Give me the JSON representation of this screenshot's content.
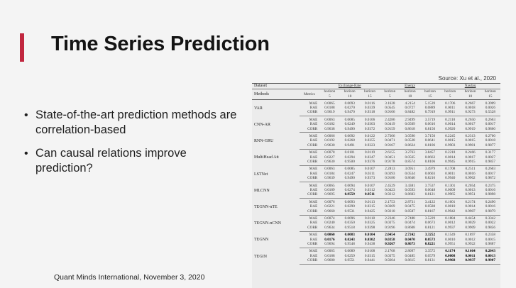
{
  "slide": {
    "title": "Time Series Prediction",
    "source": "Source: Xu et al., 2020",
    "bullets": [
      "State-of-the-art prediction methods are correlation-based",
      "Can causal relations improve prediction?"
    ],
    "footer": "Quant Minds International, November 3, 2020",
    "accent_color": "#c1273f"
  },
  "table": {
    "col_dataset": "Dataset",
    "col_methods": "Methods",
    "col_metrics": "Metrics",
    "datasets": [
      "Exchange-Rate",
      "Energy",
      "Nasdaq"
    ],
    "horizon_label": "horizon",
    "horizons": [
      "5",
      "10",
      "15"
    ],
    "rows": [
      {
        "method": "VAR",
        "metrics": [
          {
            "name": "MAE",
            "values": [
              "0.0065",
              "0.0093",
              "0.0116",
              "3.1628",
              "4.2154",
              "5.1539",
              "0.1706",
              "0.2667",
              "0.3909"
            ]
          },
          {
            "name": "RAE",
            "values": [
              "0.0188",
              "0.0270",
              "0.0339",
              "0.0545",
              "0.0727",
              "0.0889",
              "0.0011",
              "0.0018",
              "0.0026"
            ]
          },
          {
            "name": "CORR",
            "values": [
              "0.9619",
              "0.9470",
              "0.9318",
              "0.9106",
              "0.8482",
              "0.7919",
              "0.9911",
              "0.9273",
              "0.5528"
            ]
          }
        ]
      },
      {
        "method": "CNN-AR",
        "metrics": [
          {
            "name": "MAE",
            "values": [
              "0.0063",
              "0.0085",
              "0.0106",
              "2.4286",
              "2.9499",
              "3.5719",
              "0.2110",
              "0.2650",
              "0.2663"
            ]
          },
          {
            "name": "RAE",
            "values": [
              "0.0182",
              "0.0249",
              "0.0303",
              "0.0419",
              "0.0509",
              "0.0616",
              "0.0014",
              "0.0017",
              "0.0017"
            ]
          },
          {
            "name": "CORR",
            "values": [
              "0.9638",
              "0.9490",
              "0.9372",
              "0.9159",
              "0.8618",
              "0.8150",
              "0.9920",
              "0.9919",
              "0.9860"
            ]
          }
        ]
      },
      {
        "method": "RNN-GRU",
        "metrics": [
          {
            "name": "MAE",
            "values": [
              "0.0066",
              "0.0092",
              "0.0122",
              "2.7306",
              "3.0590",
              "3.7150",
              "0.2245",
              "0.2313",
              "0.2700"
            ]
          },
          {
            "name": "RAE",
            "values": [
              "0.0192",
              "0.0268",
              "0.0355",
              "0.0471",
              "0.0528",
              "0.0641",
              "0.0015",
              "0.0015",
              "0.0018"
            ]
          },
          {
            "name": "CORR",
            "values": [
              "0.9630",
              "0.9491",
              "0.9323",
              "0.9167",
              "0.8624",
              "0.8106",
              "0.9903",
              "0.9901",
              "0.9877"
            ]
          }
        ]
      },
      {
        "method": "MultiHead Att",
        "metrics": [
          {
            "name": "MAE",
            "values": [
              "0.0078",
              "0.0101",
              "0.0119",
              "2.6155",
              "3.2763",
              "3.8457",
              "0.2218",
              "0.2466",
              "0.3177"
            ]
          },
          {
            "name": "RAE",
            "values": [
              "0.0227",
              "0.0294",
              "0.0347",
              "0.0451",
              "0.0565",
              "0.0663",
              "0.0014",
              "0.0017",
              "0.0027"
            ]
          },
          {
            "name": "CORR",
            "values": [
              "0.9630",
              "0.9500",
              "0.9376",
              "0.9178",
              "0.8574",
              "0.8106",
              "0.9945",
              "0.9915",
              "0.9857"
            ]
          }
        ]
      },
      {
        "method": "LSTNet",
        "metrics": [
          {
            "name": "MAE",
            "values": [
              "0.0063",
              "0.0085",
              "0.0107",
              "2.2813",
              "3.0951",
              "3.4979",
              "0.1708",
              "0.2511",
              "0.2603"
            ]
          },
          {
            "name": "RAE",
            "values": [
              "0.0184",
              "0.0247",
              "0.0311",
              "0.0393",
              "0.0534",
              "0.0603",
              "0.0011",
              "0.0016",
              "0.0017"
            ]
          },
          {
            "name": "CORR",
            "values": [
              "0.9639",
              "0.9490",
              "0.9373",
              "0.9180",
              "0.8640",
              "0.8216",
              "0.9940",
              "0.9902",
              "0.9872"
            ]
          }
        ]
      },
      {
        "method": "MLCNN",
        "metrics": [
          {
            "name": "MAE",
            "values": [
              "0.0065",
              "0.0094",
              "0.0107",
              "2.4529",
              "3.4381",
              "3.7537",
              "0.1301",
              "0.2054",
              "0.2375"
            ]
          },
          {
            "name": "RAE",
            "values": [
              "0.0189",
              "0.0274",
              "0.0312",
              "0.0423",
              "0.0593",
              "0.0648",
              "0.0009",
              "0.0013",
              "0.0016"
            ]
          },
          {
            "name": "CORR",
            "values": [
              "0.9695",
              "0.9559",
              "0.9511",
              "0.9212",
              "0.8603",
              "0.8121",
              "0.9965",
              "0.9951",
              "0.9898"
            ]
          }
        ]
      },
      {
        "method": "TEGNN-nTE",
        "metrics": [
          {
            "name": "MAE",
            "values": [
              "0.0076",
              "0.0093",
              "0.0113",
              "2.1753",
              "2.8731",
              "3.4122",
              "0.1601",
              "0.2174",
              "0.2490"
            ]
          },
          {
            "name": "RAE",
            "values": [
              "0.0221",
              "0.0290",
              "0.0315",
              "0.0369",
              "0.0475",
              "0.0588",
              "0.0010",
              "0.0014",
              "0.0016"
            ]
          },
          {
            "name": "CORR",
            "values": [
              "0.9660",
              "0.9531",
              "0.9425",
              "0.9210",
              "0.8587",
              "0.8167",
              "0.9942",
              "0.9907",
              "0.9879"
            ]
          }
        ]
      },
      {
        "method": "TEGNN-nCNN",
        "metrics": [
          {
            "name": "MAE",
            "values": [
              "0.0074",
              "0.0096",
              "0.0118",
              "2.2346",
              "2.7488",
              "3.5229",
              "0.1884",
              "0.4454",
              "0.3342"
            ]
          },
          {
            "name": "RAE",
            "values": [
              "0.0240",
              "0.0350",
              "0.0325",
              "0.0375",
              "0.0474",
              "0.0673",
              "0.0012",
              "0.0029",
              "0.0022"
            ]
          },
          {
            "name": "CORR",
            "values": [
              "0.9634",
              "0.9518",
              "0.9398",
              "0.9196",
              "0.8608",
              "0.8121",
              "0.9937",
              "0.9909",
              "0.9856"
            ]
          }
        ]
      },
      {
        "method": "TEGNN",
        "metrics": [
          {
            "name": "MAE",
            "values": [
              "0.0060",
              "0.0083",
              "0.0104",
              "2.0454",
              "2.7242",
              "3.3252",
              "0.1549",
              "0.1897",
              "0.2358"
            ]
          },
          {
            "name": "RAE",
            "values": [
              "0.0176",
              "0.0243",
              "0.0302",
              "0.0358",
              "0.0470",
              "0.0573",
              "0.0010",
              "0.0012",
              "0.0015"
            ]
          },
          {
            "name": "CORR",
            "values": [
              "0.9694",
              "0.9548",
              "0.9438",
              "0.9267",
              "0.8673",
              "0.8221",
              "0.9951",
              "0.9922",
              "0.9887"
            ]
          }
        ]
      },
      {
        "method": "TEGIN",
        "metrics": [
          {
            "name": "MAE",
            "values": [
              "0.0065",
              "0.0089",
              "0.0108",
              "2.1768",
              "2.8097",
              "3.3572",
              "0.1174",
              "0.1664",
              "0.2043"
            ]
          },
          {
            "name": "RAE",
            "values": [
              "0.0188",
              "0.0259",
              "0.0315",
              "0.0375",
              "0.0485",
              "0.0579",
              "0.0008",
              "0.0011",
              "0.0013"
            ]
          },
          {
            "name": "CORR",
            "values": [
              "0.9680",
              "0.9551",
              "0.9441",
              "0.9204",
              "0.8615",
              "0.8131",
              "0.9968",
              "0.9937",
              "0.9907"
            ]
          }
        ]
      }
    ],
    "bold_cells": [
      "8.0.0",
      "8.0.1",
      "8.0.2",
      "8.0.3",
      "8.0.4",
      "8.0.5",
      "8.1.0",
      "8.1.1",
      "8.1.2",
      "8.1.3",
      "8.1.4",
      "8.1.5",
      "8.2.4",
      "8.2.5",
      "5.2.1",
      "5.2.2",
      "8.2.3",
      "9.0.6",
      "9.0.7",
      "9.0.8",
      "9.1.6",
      "9.1.7",
      "9.1.8",
      "9.2.6",
      "9.2.7",
      "9.2.8"
    ]
  }
}
